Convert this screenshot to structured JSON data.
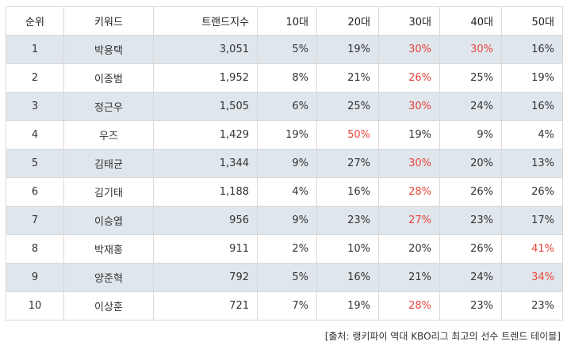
{
  "table": {
    "headers": {
      "rank": "순위",
      "keyword": "키워드",
      "trend": "트랜드지수",
      "age10": "10대",
      "age20": "20대",
      "age30": "30대",
      "age40": "40대",
      "age50": "50대"
    },
    "highlight_color": "#e8453c",
    "stripe_color": "#dfe6ec",
    "rows": [
      {
        "rank": "1",
        "keyword": "박용택",
        "trend": "3,051",
        "age10": "5%",
        "age20": "19%",
        "age30": "30%",
        "age40": "30%",
        "age50": "16%",
        "hl": [
          "age30",
          "age40"
        ]
      },
      {
        "rank": "2",
        "keyword": "이종범",
        "trend": "1,952",
        "age10": "8%",
        "age20": "21%",
        "age30": "26%",
        "age40": "25%",
        "age50": "19%",
        "hl": [
          "age30"
        ]
      },
      {
        "rank": "3",
        "keyword": "정근우",
        "trend": "1,505",
        "age10": "6%",
        "age20": "25%",
        "age30": "30%",
        "age40": "24%",
        "age50": "16%",
        "hl": [
          "age30"
        ]
      },
      {
        "rank": "4",
        "keyword": "우즈",
        "trend": "1,429",
        "age10": "19%",
        "age20": "50%",
        "age30": "19%",
        "age40": "9%",
        "age50": "4%",
        "hl": [
          "age20"
        ]
      },
      {
        "rank": "5",
        "keyword": "김태균",
        "trend": "1,344",
        "age10": "9%",
        "age20": "27%",
        "age30": "30%",
        "age40": "20%",
        "age50": "13%",
        "hl": [
          "age30"
        ]
      },
      {
        "rank": "6",
        "keyword": "김기태",
        "trend": "1,188",
        "age10": "4%",
        "age20": "16%",
        "age30": "28%",
        "age40": "26%",
        "age50": "26%",
        "hl": [
          "age30"
        ]
      },
      {
        "rank": "7",
        "keyword": "이승엽",
        "trend": "956",
        "age10": "9%",
        "age20": "23%",
        "age30": "27%",
        "age40": "23%",
        "age50": "17%",
        "hl": [
          "age30"
        ]
      },
      {
        "rank": "8",
        "keyword": "박재홍",
        "trend": "911",
        "age10": "2%",
        "age20": "10%",
        "age30": "20%",
        "age40": "26%",
        "age50": "41%",
        "hl": [
          "age50"
        ]
      },
      {
        "rank": "9",
        "keyword": "양준혁",
        "trend": "792",
        "age10": "5%",
        "age20": "16%",
        "age30": "21%",
        "age40": "24%",
        "age50": "34%",
        "hl": [
          "age50"
        ]
      },
      {
        "rank": "10",
        "keyword": "이상훈",
        "trend": "721",
        "age10": "7%",
        "age20": "19%",
        "age30": "28%",
        "age40": "23%",
        "age50": "23%",
        "hl": [
          "age30"
        ]
      }
    ]
  },
  "source": "[출처: 랭키파이 역대 KBO리그 최고의 선수 트렌드 테이블]"
}
